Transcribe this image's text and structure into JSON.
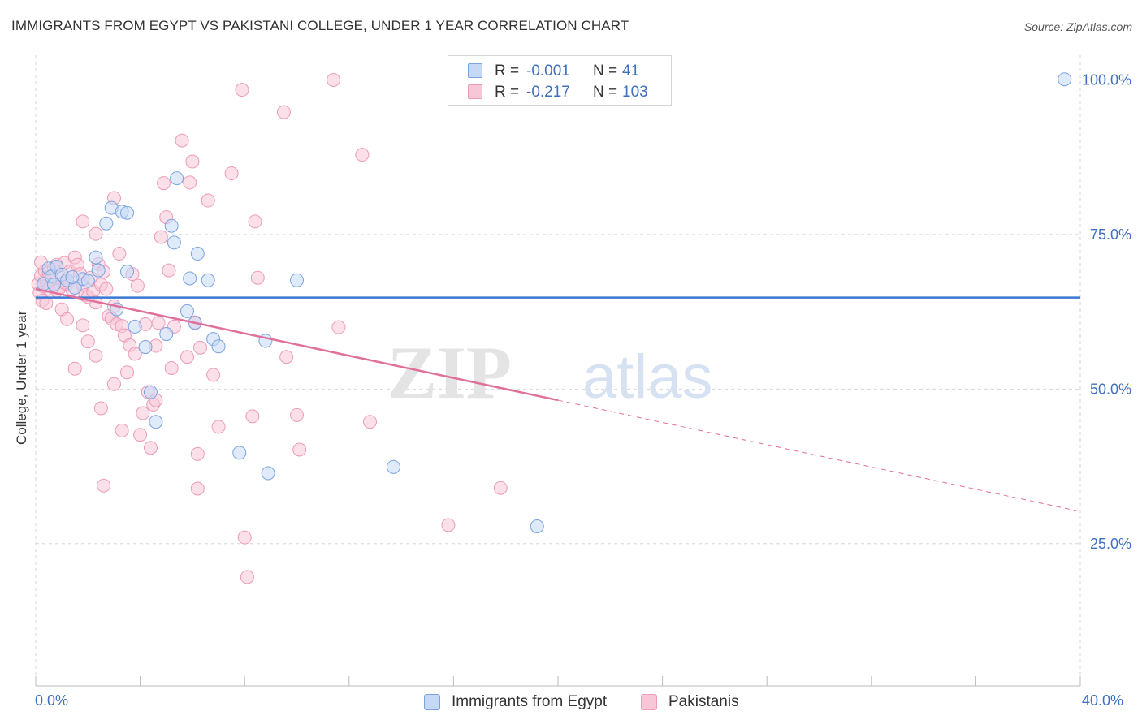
{
  "title": "IMMIGRANTS FROM EGYPT VS PAKISTANI COLLEGE, UNDER 1 YEAR CORRELATION CHART",
  "source": "Source: ZipAtlas.com",
  "watermark": {
    "zip": "ZIP",
    "atlas": "atlas"
  },
  "colors": {
    "blue": "#3a78d4",
    "blue_fill": "#c5d8f5",
    "blue_stroke": "#7aa3e0",
    "pink": "#e0709a",
    "pink_fill": "#f7c6d7",
    "pink_stroke": "#ec9bb8",
    "axis_text": "#3f6fbf",
    "grid": "#d6d6d6"
  },
  "legend_top": [
    {
      "r_label": "R =",
      "r_value": "-0.001",
      "n_label": "N =",
      "n_value": "41"
    },
    {
      "r_label": "R =",
      "r_value": "-0.217",
      "n_label": "N =",
      "n_value": "103"
    }
  ],
  "legend_bottom": [
    "Immigrants from Egypt",
    "Pakistanis"
  ],
  "chart_data": {
    "type": "scatter",
    "title": "IMMIGRANTS FROM EGYPT VS PAKISTANI COLLEGE, UNDER 1 YEAR CORRELATION CHART",
    "xlabel": "",
    "ylabel": "College, Under 1 year",
    "xlim": [
      0,
      40
    ],
    "ylim": [
      2,
      104
    ],
    "x_tick_labels": [
      "0.0%",
      "40.0%"
    ],
    "y_ticks": [
      25,
      50,
      75,
      100
    ],
    "y_tick_labels": [
      "25.0%",
      "50.0%",
      "75.0%",
      "100.0%"
    ],
    "grid": true,
    "legend_position": "top-center",
    "series": [
      {
        "name": "Immigrants from Egypt",
        "r": -0.001,
        "n": 41,
        "trend": {
          "x": [
            0,
            40
          ],
          "y": [
            64.8,
            64.8
          ],
          "solid_to": 40
        },
        "points": [
          [
            0.3,
            67.0
          ],
          [
            0.5,
            69.5
          ],
          [
            0.6,
            68.2
          ],
          [
            0.8,
            69.8
          ],
          [
            1.0,
            68.5
          ],
          [
            1.2,
            67.6
          ],
          [
            1.5,
            66.4
          ],
          [
            1.8,
            67.8
          ],
          [
            2.3,
            71.3
          ],
          [
            2.4,
            69.2
          ],
          [
            2.7,
            76.8
          ],
          [
            2.9,
            79.3
          ],
          [
            3.3,
            78.7
          ],
          [
            3.5,
            78.5
          ],
          [
            3.1,
            62.9
          ],
          [
            3.5,
            69.0
          ],
          [
            3.8,
            60.1
          ],
          [
            4.2,
            56.8
          ],
          [
            4.4,
            49.5
          ],
          [
            4.6,
            44.7
          ],
          [
            5.0,
            58.9
          ],
          [
            5.2,
            76.4
          ],
          [
            5.3,
            73.7
          ],
          [
            5.4,
            84.1
          ],
          [
            5.8,
            62.6
          ],
          [
            5.9,
            67.9
          ],
          [
            6.1,
            60.7
          ],
          [
            6.2,
            71.9
          ],
          [
            6.6,
            67.6
          ],
          [
            6.8,
            58.1
          ],
          [
            7.0,
            56.9
          ],
          [
            7.8,
            39.7
          ],
          [
            8.8,
            57.8
          ],
          [
            8.9,
            36.4
          ],
          [
            10.0,
            67.6
          ],
          [
            13.7,
            37.4
          ],
          [
            19.2,
            27.8
          ],
          [
            39.4,
            100.1
          ],
          [
            1.4,
            68.1
          ],
          [
            0.7,
            66.9
          ],
          [
            2.0,
            67.5
          ]
        ]
      },
      {
        "name": "Pakistanis",
        "r": -0.217,
        "n": 103,
        "trend": {
          "x": [
            0,
            40
          ],
          "y": [
            66.2,
            30.2
          ],
          "solid_to": 20
        },
        "points": [
          [
            0.1,
            67.0
          ],
          [
            0.15,
            65.6
          ],
          [
            0.2,
            68.3
          ],
          [
            0.25,
            64.3
          ],
          [
            0.3,
            66.6
          ],
          [
            0.35,
            69.1
          ],
          [
            0.4,
            67.5
          ],
          [
            0.5,
            68.8
          ],
          [
            0.6,
            67.7
          ],
          [
            0.7,
            69.6
          ],
          [
            0.8,
            70.1
          ],
          [
            0.9,
            66.3
          ],
          [
            1.0,
            68.0
          ],
          [
            1.1,
            70.4
          ],
          [
            1.2,
            67.0
          ],
          [
            1.3,
            69.0
          ],
          [
            1.4,
            66.1
          ],
          [
            1.5,
            71.3
          ],
          [
            1.6,
            70.1
          ],
          [
            1.7,
            68.6
          ],
          [
            1.8,
            66.8
          ],
          [
            1.9,
            65.2
          ],
          [
            2.0,
            64.9
          ],
          [
            2.1,
            68.0
          ],
          [
            2.2,
            65.8
          ],
          [
            2.3,
            64.0
          ],
          [
            2.4,
            70.2
          ],
          [
            2.5,
            66.9
          ],
          [
            2.6,
            69.0
          ],
          [
            2.7,
            66.2
          ],
          [
            2.8,
            61.8
          ],
          [
            2.9,
            61.4
          ],
          [
            3.0,
            63.4
          ],
          [
            3.1,
            60.5
          ],
          [
            3.2,
            71.9
          ],
          [
            3.3,
            60.2
          ],
          [
            3.4,
            58.7
          ],
          [
            3.5,
            52.7
          ],
          [
            3.6,
            57.1
          ],
          [
            3.7,
            68.6
          ],
          [
            3.8,
            55.7
          ],
          [
            3.9,
            66.7
          ],
          [
            4.0,
            42.6
          ],
          [
            4.1,
            46.1
          ],
          [
            4.2,
            60.5
          ],
          [
            4.3,
            49.5
          ],
          [
            4.4,
            40.5
          ],
          [
            4.5,
            47.5
          ],
          [
            4.6,
            57.0
          ],
          [
            4.7,
            60.7
          ],
          [
            4.8,
            74.6
          ],
          [
            4.9,
            83.3
          ],
          [
            5.0,
            77.8
          ],
          [
            5.1,
            69.2
          ],
          [
            5.2,
            53.4
          ],
          [
            5.3,
            60.1
          ],
          [
            5.6,
            90.2
          ],
          [
            5.8,
            55.2
          ],
          [
            5.9,
            83.4
          ],
          [
            6.0,
            86.8
          ],
          [
            6.1,
            60.8
          ],
          [
            6.2,
            39.5
          ],
          [
            6.3,
            56.7
          ],
          [
            6.6,
            80.5
          ],
          [
            6.8,
            52.3
          ],
          [
            7.0,
            43.9
          ],
          [
            7.5,
            84.9
          ],
          [
            7.9,
            98.4
          ],
          [
            8.0,
            26.0
          ],
          [
            8.1,
            19.6
          ],
          [
            8.3,
            45.6
          ],
          [
            8.4,
            77.1
          ],
          [
            8.5,
            68.0
          ],
          [
            9.5,
            94.8
          ],
          [
            9.6,
            55.2
          ],
          [
            10.0,
            45.8
          ],
          [
            10.1,
            40.2
          ],
          [
            11.4,
            100.0
          ],
          [
            11.6,
            60.0
          ],
          [
            12.5,
            87.9
          ],
          [
            12.8,
            44.7
          ],
          [
            15.8,
            28.0
          ],
          [
            17.8,
            34.0
          ],
          [
            1.8,
            60.3
          ],
          [
            2.0,
            57.7
          ],
          [
            2.3,
            55.4
          ],
          [
            2.5,
            46.9
          ],
          [
            2.6,
            34.4
          ],
          [
            3.0,
            50.8
          ],
          [
            3.3,
            43.3
          ],
          [
            1.0,
            62.9
          ],
          [
            1.2,
            61.3
          ],
          [
            1.5,
            53.3
          ],
          [
            1.8,
            77.1
          ],
          [
            2.3,
            75.1
          ],
          [
            3.0,
            80.9
          ],
          [
            4.6,
            48.2
          ],
          [
            6.2,
            33.9
          ],
          [
            0.5,
            66.2
          ],
          [
            0.8,
            65.9
          ],
          [
            1.1,
            67.2
          ],
          [
            0.2,
            70.5
          ],
          [
            0.4,
            63.9
          ]
        ]
      }
    ]
  }
}
